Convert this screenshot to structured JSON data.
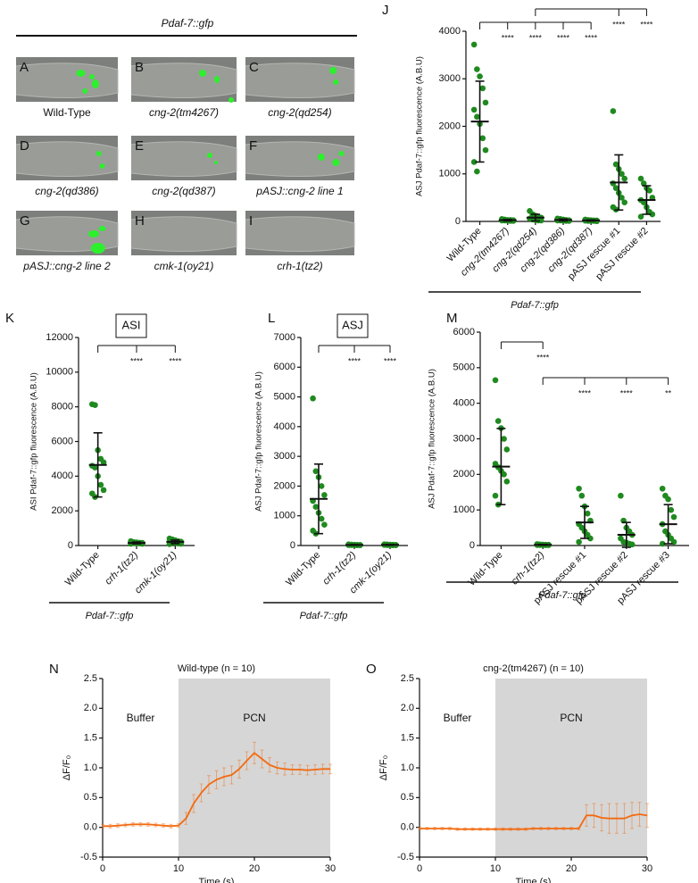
{
  "image_panels": {
    "title": "Pdaf-7::gfp",
    "panels": [
      {
        "letter": "A",
        "caption": "Wild-Type"
      },
      {
        "letter": "B",
        "caption": "cng-2(tm4267)"
      },
      {
        "letter": "C",
        "caption": "cng-2(qd254)"
      },
      {
        "letter": "D",
        "caption": "cng-2(qd386)"
      },
      {
        "letter": "E",
        "caption": "cng-2(qd387)"
      },
      {
        "letter": "F",
        "caption": "pASJ::cng-2 line 1"
      },
      {
        "letter": "G",
        "caption": "pASJ::cng-2 line 2"
      },
      {
        "letter": "H",
        "caption": "cmk-1(oy21)"
      },
      {
        "letter": "I",
        "caption": "crh-1(tz2)"
      }
    ]
  },
  "chart_data": [
    {
      "type": "dotplot",
      "panel": "J",
      "y_label": "ASJ Pdaf-7::gfp fluorescence (A.B.U)",
      "group_label": "Pdaf-7::gfp",
      "color": "#1f8a1f",
      "categories": [
        "Wild-Type",
        "cng-2(tm4267)",
        "cng-2(qd254)",
        "cng-2(qd386)",
        "cng-2(qd387)",
        "pASJ rescue #1",
        "pASJ rescue #2"
      ],
      "points": [
        [
          3720,
          3200,
          3050,
          2800,
          2500,
          2350,
          2200,
          2050,
          1750,
          1500,
          1250,
          1050
        ],
        [
          50,
          40,
          30,
          30,
          25,
          20,
          20,
          15,
          10,
          10
        ],
        [
          220,
          150,
          120,
          100,
          80,
          60,
          40,
          30,
          20,
          20
        ],
        [
          60,
          50,
          40,
          30,
          25,
          20,
          20,
          15,
          10,
          10
        ],
        [
          40,
          30,
          25,
          20,
          20,
          15,
          10,
          10,
          10,
          5
        ],
        [
          2320,
          1200,
          1100,
          1000,
          900,
          800,
          700,
          600,
          500,
          400,
          300,
          250
        ],
        [
          900,
          800,
          700,
          650,
          500,
          450,
          400,
          300,
          200,
          150,
          100
        ]
      ],
      "means": [
        2100,
        25,
        80,
        30,
        20,
        820,
        450
      ],
      "sd": [
        850,
        15,
        70,
        20,
        12,
        580,
        300
      ],
      "significance": [
        null,
        "****",
        "****",
        "****",
        "****",
        "****",
        "****"
      ],
      "ylim": [
        0,
        4000
      ],
      "yticks": [
        0,
        1000,
        2000,
        3000,
        4000
      ]
    },
    {
      "type": "dotplot",
      "panel": "K",
      "box_label": "ASI",
      "y_label": "ASI Pdaf-7::gfp fluorescence (A.B.U)",
      "group_label": "Pdaf-7::gfp",
      "color": "#1f8a1f",
      "categories": [
        "Wild-Type",
        "crh-1(tz2)",
        "cmk-1(oy21)"
      ],
      "points": [
        [
          8150,
          8100,
          5500,
          5000,
          4800,
          4600,
          4500,
          4000,
          3500,
          3200,
          3000,
          2800
        ],
        [
          250,
          200,
          180,
          160,
          150,
          150,
          140,
          130,
          120,
          100,
          100
        ],
        [
          400,
          350,
          300,
          250,
          220,
          200,
          180,
          150,
          120,
          100,
          80
        ]
      ],
      "means": [
        4650,
        150,
        210
      ],
      "sd": [
        1850,
        50,
        100
      ],
      "significance": [
        null,
        "****",
        "****"
      ],
      "ylim": [
        0,
        12000
      ],
      "yticks": [
        0,
        2000,
        4000,
        6000,
        8000,
        10000,
        12000
      ]
    },
    {
      "type": "dotplot",
      "panel": "L",
      "box_label": "ASJ",
      "y_label": "ASJ Pdaf-7::gfp fluorescence (A.B.U)",
      "group_label": "Pdaf-7::gfp",
      "color": "#1f8a1f",
      "categories": [
        "Wild-Type",
        "crh-1(tz2)",
        "cmk-1(oy21)"
      ],
      "points": [
        [
          4950,
          2500,
          2300,
          2000,
          1700,
          1500,
          1300,
          1100,
          900,
          700,
          500,
          400
        ],
        [
          40,
          30,
          25,
          20,
          20,
          15,
          15,
          10,
          10,
          10
        ],
        [
          40,
          35,
          30,
          25,
          20,
          20,
          15,
          10,
          10,
          10
        ]
      ],
      "means": [
        1570,
        20,
        22
      ],
      "sd": [
        1170,
        10,
        10
      ],
      "significance": [
        null,
        "****",
        "****"
      ],
      "ylim": [
        0,
        7000
      ],
      "yticks": [
        0,
        1000,
        2000,
        3000,
        4000,
        5000,
        6000,
        7000
      ]
    },
    {
      "type": "dotplot",
      "panel": "M",
      "y_label": "ASJ Pdaf-7::gfp fluorescence (A.B.U)",
      "group_label": "Pdaf-7::gfp",
      "color": "#1f8a1f",
      "categories": [
        "Wild-Type",
        "crh-1(tz2)",
        "pASJ rescue #1",
        "pASJ rescue #2",
        "pASJ rescue #3"
      ],
      "points": [
        [
          4650,
          3500,
          3300,
          3000,
          2700,
          2300,
          2200,
          2100,
          2000,
          1800,
          1400,
          1150
        ],
        [
          40,
          30,
          25,
          20,
          20,
          15,
          15,
          10,
          10,
          10
        ],
        [
          1600,
          1400,
          1100,
          900,
          700,
          600,
          500,
          400,
          300,
          200,
          100
        ],
        [
          1400,
          700,
          500,
          400,
          300,
          200,
          100,
          80,
          50,
          30
        ],
        [
          1600,
          1400,
          1300,
          1000,
          800,
          600,
          400,
          300,
          200,
          100,
          50
        ]
      ],
      "means": [
        2220,
        20,
        650,
        300,
        600
      ],
      "sd": [
        1070,
        10,
        450,
        350,
        550
      ],
      "significance": [
        null,
        "****",
        "****",
        "****",
        "**"
      ],
      "ylim": [
        0,
        6000
      ],
      "yticks": [
        0,
        1000,
        2000,
        3000,
        4000,
        5000,
        6000
      ]
    },
    {
      "type": "line",
      "panel": "N",
      "title": "Wild-type (n = 10)",
      "x_label": "Time (s)",
      "y_label": "ΔF/F₀",
      "shade": [
        10,
        30
      ],
      "region_labels": [
        "Buffer",
        "PCN"
      ],
      "x": [
        0,
        1,
        2,
        3,
        4,
        5,
        6,
        7,
        8,
        9,
        10,
        11,
        12,
        13,
        14,
        15,
        16,
        17,
        18,
        19,
        20,
        21,
        22,
        23,
        24,
        25,
        26,
        27,
        28,
        29,
        30
      ],
      "series": [
        {
          "color": "#f26a10",
          "values": [
            0.02,
            0.02,
            0.03,
            0.04,
            0.05,
            0.05,
            0.05,
            0.04,
            0.03,
            0.02,
            0.03,
            0.15,
            0.4,
            0.58,
            0.72,
            0.8,
            0.85,
            0.88,
            0.98,
            1.12,
            1.25,
            1.15,
            1.05,
            1.0,
            0.98,
            0.97,
            0.97,
            0.96,
            0.97,
            0.98,
            0.98
          ],
          "errors": [
            0.03,
            0.03,
            0.03,
            0.03,
            0.03,
            0.03,
            0.03,
            0.03,
            0.03,
            0.03,
            0.03,
            0.1,
            0.15,
            0.15,
            0.15,
            0.15,
            0.15,
            0.15,
            0.15,
            0.15,
            0.18,
            0.15,
            0.12,
            0.1,
            0.1,
            0.08,
            0.08,
            0.08,
            0.08,
            0.08,
            0.08
          ]
        }
      ],
      "xlim": [
        0,
        30
      ],
      "xticks": [
        0,
        10,
        20,
        30
      ],
      "ylim": [
        -0.5,
        2.5
      ],
      "yticks": [
        -0.5,
        {
          "value": 0,
          "label": "0.0"
        },
        0.5,
        {
          "value": 1,
          "label": "1.0"
        },
        1.5,
        {
          "value": 2,
          "label": "2.0"
        },
        2.5
      ]
    },
    {
      "type": "line",
      "panel": "O",
      "title": "cng-2(tm4267) (n = 10)",
      "x_label": "Time (s)",
      "y_label": "ΔF/F₀",
      "shade": [
        10,
        30
      ],
      "region_labels": [
        "Buffer",
        "PCN"
      ],
      "x": [
        0,
        1,
        2,
        3,
        4,
        5,
        6,
        7,
        8,
        9,
        10,
        11,
        12,
        13,
        14,
        15,
        16,
        17,
        18,
        19,
        20,
        21,
        22,
        23,
        24,
        25,
        26,
        27,
        28,
        29,
        30
      ],
      "series": [
        {
          "color": "#f26a10",
          "values": [
            -0.02,
            -0.02,
            -0.02,
            -0.02,
            -0.02,
            -0.03,
            -0.03,
            -0.03,
            -0.03,
            -0.03,
            -0.03,
            -0.03,
            -0.03,
            -0.03,
            -0.03,
            -0.02,
            -0.02,
            -0.02,
            -0.02,
            -0.02,
            -0.02,
            -0.02,
            0.2,
            0.2,
            0.16,
            0.15,
            0.15,
            0.15,
            0.2,
            0.22,
            0.2
          ],
          "errors": [
            0.02,
            0.02,
            0.02,
            0.02,
            0.02,
            0.02,
            0.02,
            0.02,
            0.02,
            0.02,
            0.02,
            0.02,
            0.02,
            0.02,
            0.02,
            0.02,
            0.02,
            0.02,
            0.02,
            0.02,
            0.02,
            0.02,
            0.18,
            0.2,
            0.22,
            0.25,
            0.25,
            0.25,
            0.22,
            0.2,
            0.2
          ]
        }
      ],
      "xlim": [
        0,
        30
      ],
      "xticks": [
        0,
        10,
        20,
        30
      ],
      "ylim": [
        -0.5,
        2.5
      ],
      "yticks": [
        -0.5,
        {
          "value": 0,
          "label": "0.0"
        },
        0.5,
        {
          "value": 1,
          "label": "1.0"
        },
        1.5,
        {
          "value": 2,
          "label": "2.0"
        },
        2.5
      ]
    }
  ]
}
